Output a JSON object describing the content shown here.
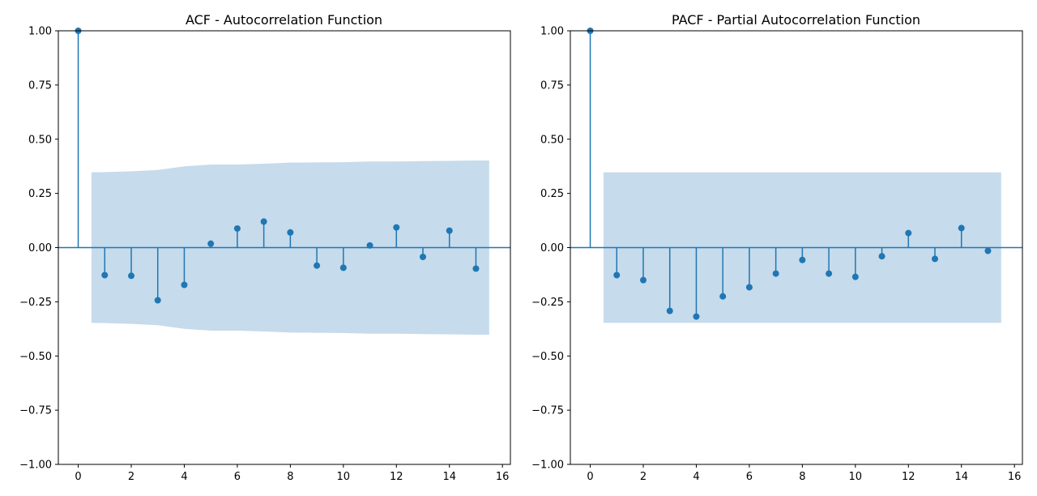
{
  "colors": {
    "series": "#1f77b4",
    "band": "#c6dbeb",
    "axis": "#000000"
  },
  "chart_data": [
    {
      "type": "scatter",
      "subtype": "stem",
      "title": "ACF - Autocorrelation Function",
      "xlabel": "",
      "ylabel": "",
      "xlim": [
        -0.75,
        16.3
      ],
      "ylim": [
        -1.0,
        1.0
      ],
      "xticks": [
        0,
        2,
        4,
        6,
        8,
        10,
        12,
        14,
        16
      ],
      "xtick_labels": [
        "0",
        "2",
        "4",
        "6",
        "8",
        "10",
        "12",
        "14",
        "16"
      ],
      "yticks": [
        1.0,
        0.75,
        0.5,
        0.25,
        0.0,
        -0.25,
        -0.5,
        -0.75,
        -1.0
      ],
      "ytick_labels": [
        "1.00",
        "0.75",
        "0.50",
        "0.25",
        "0.00",
        "−0.25",
        "−0.50",
        "−0.75",
        "−1.00"
      ],
      "grid": false,
      "lags": [
        0,
        1,
        2,
        3,
        4,
        5,
        6,
        7,
        8,
        9,
        10,
        11,
        12,
        13,
        14,
        15
      ],
      "values": [
        1.0,
        -0.127,
        -0.13,
        -0.243,
        -0.172,
        0.018,
        0.088,
        0.12,
        0.07,
        -0.083,
        -0.093,
        0.01,
        0.093,
        -0.043,
        0.078,
        -0.097
      ],
      "confidence_band": {
        "x": [
          0.5,
          1,
          2,
          3,
          4,
          5,
          6,
          7,
          8,
          9,
          10,
          11,
          12,
          13,
          14,
          15,
          15.5
        ],
        "upper": [
          0.347,
          0.348,
          0.352,
          0.358,
          0.375,
          0.383,
          0.383,
          0.387,
          0.392,
          0.393,
          0.394,
          0.397,
          0.397,
          0.399,
          0.4,
          0.402,
          0.402
        ],
        "lower": [
          -0.347,
          -0.348,
          -0.352,
          -0.358,
          -0.375,
          -0.383,
          -0.383,
          -0.387,
          -0.392,
          -0.393,
          -0.394,
          -0.397,
          -0.397,
          -0.399,
          -0.4,
          -0.402,
          -0.402
        ]
      }
    },
    {
      "type": "scatter",
      "subtype": "stem",
      "title": "PACF - Partial Autocorrelation Function",
      "xlabel": "",
      "ylabel": "",
      "xlim": [
        -0.75,
        16.3
      ],
      "ylim": [
        -1.0,
        1.0
      ],
      "xticks": [
        0,
        2,
        4,
        6,
        8,
        10,
        12,
        14,
        16
      ],
      "xtick_labels": [
        "0",
        "2",
        "4",
        "6",
        "8",
        "10",
        "12",
        "14",
        "16"
      ],
      "yticks": [
        1.0,
        0.75,
        0.5,
        0.25,
        0.0,
        -0.25,
        -0.5,
        -0.75,
        -1.0
      ],
      "ytick_labels": [
        "1.00",
        "0.75",
        "0.50",
        "0.25",
        "0.00",
        "−0.25",
        "−0.50",
        "−0.75",
        "−1.00"
      ],
      "grid": false,
      "lags": [
        0,
        1,
        2,
        3,
        4,
        5,
        6,
        7,
        8,
        9,
        10,
        11,
        12,
        13,
        14,
        15
      ],
      "values": [
        1.0,
        -0.127,
        -0.15,
        -0.292,
        -0.318,
        -0.225,
        -0.183,
        -0.12,
        -0.057,
        -0.12,
        -0.135,
        -0.04,
        0.067,
        -0.052,
        0.09,
        -0.015
      ],
      "confidence_band": {
        "x": [
          0.5,
          15.5
        ],
        "upper": [
          0.347,
          0.347
        ],
        "lower": [
          -0.347,
          -0.347
        ]
      }
    }
  ]
}
